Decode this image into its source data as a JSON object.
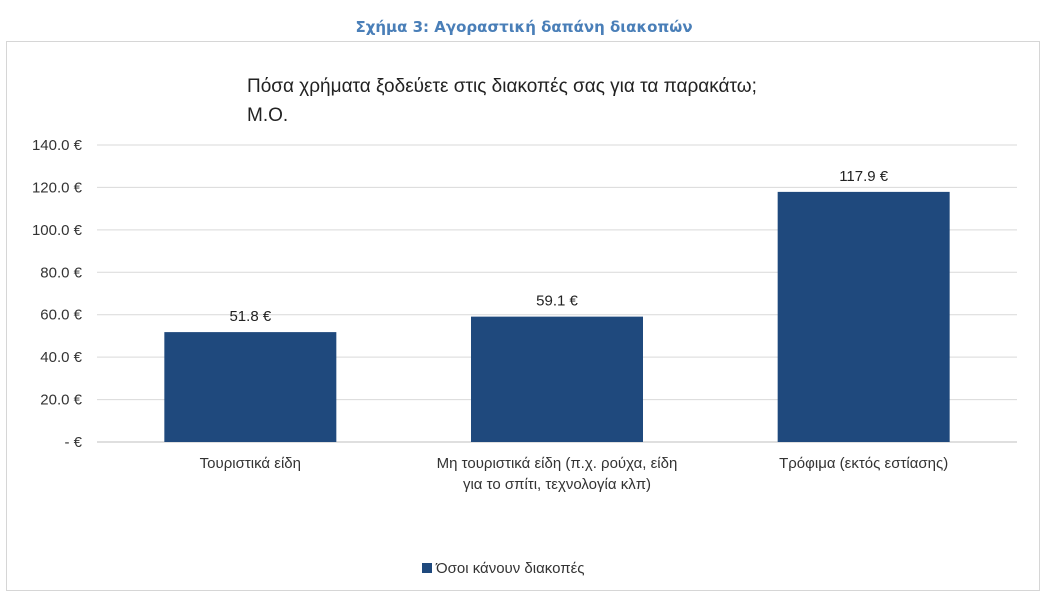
{
  "figure": {
    "caption": "Σχήμα 3: Αγοραστική δαπάνη διακοπών"
  },
  "chart_data": {
    "type": "bar",
    "title": "Πόσα χρήματα ξοδεύετε στις διακοπές σας για τα παρακάτω;",
    "subtitle": "Μ.Ο.",
    "categories": [
      [
        "Τουριστικά είδη"
      ],
      [
        "Μη τουριστικά είδη (π.χ. ρούχα, είδη",
        "για το σπίτι, τεχνολογία κλπ)"
      ],
      [
        "Τρόφιμα (εκτός εστίασης)"
      ]
    ],
    "series": [
      {
        "name": "Όσοι κάνουν διακοπές",
        "values": [
          51.8,
          59.1,
          117.9
        ],
        "color": "#1f497d"
      }
    ],
    "data_labels": [
      "51.8 €",
      "59.1 €",
      "117.9 €"
    ],
    "ylim": [
      0,
      140
    ],
    "yticks": [
      0,
      20,
      40,
      60,
      80,
      100,
      120,
      140
    ],
    "ytick_labels": [
      "- €",
      "20.0 €",
      "40.0 €",
      "60.0 €",
      "80.0 €",
      "100.0 €",
      "120.0 €",
      "140.0 €"
    ],
    "grid": true,
    "legend_position": "bottom",
    "xlabel": "",
    "ylabel": ""
  }
}
